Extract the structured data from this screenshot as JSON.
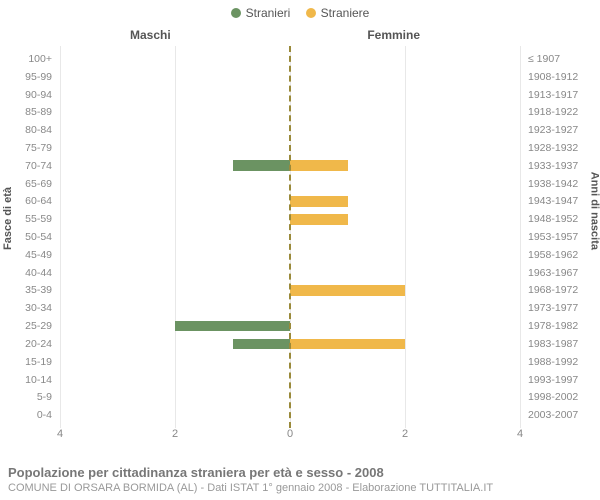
{
  "chart": {
    "type": "pyramid-bar",
    "legend": [
      {
        "label": "Stranieri",
        "color": "#6b9362"
      },
      {
        "label": "Straniere",
        "color": "#f0b84a"
      }
    ],
    "col_title_left": "Maschi",
    "col_title_right": "Femmine",
    "y_axis_label_left": "Fasce di età",
    "y_axis_label_right": "Anni di nascita",
    "x_max": 4,
    "x_ticks_left": [
      4,
      2,
      0
    ],
    "x_ticks_right": [
      0,
      2,
      4
    ],
    "grid_positions_pct": [
      0,
      25,
      50,
      75,
      100
    ],
    "colors": {
      "male": "#6b9362",
      "female": "#f0b84a",
      "grid": "#e8e8e8",
      "center_dash": "#9a8a3a",
      "text": "#888",
      "title_text": "#555"
    },
    "rows": [
      {
        "age": "100+",
        "birth": "≤ 1907",
        "m": 0,
        "f": 0
      },
      {
        "age": "95-99",
        "birth": "1908-1912",
        "m": 0,
        "f": 0
      },
      {
        "age": "90-94",
        "birth": "1913-1917",
        "m": 0,
        "f": 0
      },
      {
        "age": "85-89",
        "birth": "1918-1922",
        "m": 0,
        "f": 0
      },
      {
        "age": "80-84",
        "birth": "1923-1927",
        "m": 0,
        "f": 0
      },
      {
        "age": "75-79",
        "birth": "1928-1932",
        "m": 0,
        "f": 0
      },
      {
        "age": "70-74",
        "birth": "1933-1937",
        "m": 1,
        "f": 1
      },
      {
        "age": "65-69",
        "birth": "1938-1942",
        "m": 0,
        "f": 0
      },
      {
        "age": "60-64",
        "birth": "1943-1947",
        "m": 0,
        "f": 1
      },
      {
        "age": "55-59",
        "birth": "1948-1952",
        "m": 0,
        "f": 1
      },
      {
        "age": "50-54",
        "birth": "1953-1957",
        "m": 0,
        "f": 0
      },
      {
        "age": "45-49",
        "birth": "1958-1962",
        "m": 0,
        "f": 0
      },
      {
        "age": "40-44",
        "birth": "1963-1967",
        "m": 0,
        "f": 0
      },
      {
        "age": "35-39",
        "birth": "1968-1972",
        "m": 0,
        "f": 2
      },
      {
        "age": "30-34",
        "birth": "1973-1977",
        "m": 0,
        "f": 0
      },
      {
        "age": "25-29",
        "birth": "1978-1982",
        "m": 2,
        "f": 0
      },
      {
        "age": "20-24",
        "birth": "1983-1987",
        "m": 1,
        "f": 2
      },
      {
        "age": "15-19",
        "birth": "1988-1992",
        "m": 0,
        "f": 0
      },
      {
        "age": "10-14",
        "birth": "1993-1997",
        "m": 0,
        "f": 0
      },
      {
        "age": "5-9",
        "birth": "1998-2002",
        "m": 0,
        "f": 0
      },
      {
        "age": "0-4",
        "birth": "2003-2007",
        "m": 0,
        "f": 0
      }
    ]
  },
  "footer": {
    "title": "Popolazione per cittadinanza straniera per età e sesso - 2008",
    "sub": "COMUNE DI ORSARA BORMIDA (AL) - Dati ISTAT 1° gennaio 2008 - Elaborazione TUTTITALIA.IT"
  }
}
